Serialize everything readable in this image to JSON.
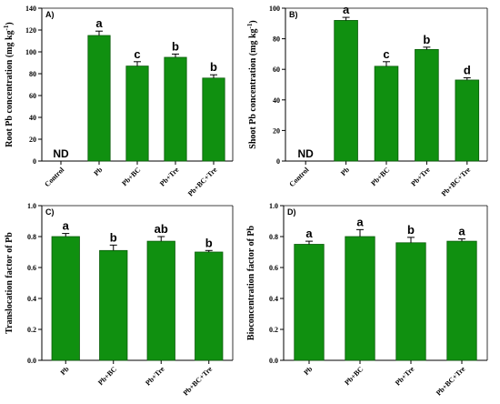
{
  "colors": {
    "bar": "#109010",
    "bar_edge": "#0a5c0a",
    "axis": "#000000"
  },
  "chart_data": [
    {
      "type": "bar",
      "panel_label": "A)",
      "ylabel": "Root Pb concentration (mg kg",
      "ylabel_sup": "-1",
      "ylabel_close": ")",
      "ylim": [
        0,
        140
      ],
      "yticks": [
        0,
        20,
        40,
        60,
        80,
        100,
        120,
        140
      ],
      "categories": [
        "Control",
        "Pb",
        "Pb+BC",
        "Pb+Tre",
        "Pb+BC+Tre"
      ],
      "values": [
        null,
        115,
        87,
        95,
        76
      ],
      "errors": [
        null,
        4,
        4,
        3,
        3
      ],
      "letters": [
        "",
        "a",
        "c",
        "b",
        "b"
      ],
      "missing_label": "ND"
    },
    {
      "type": "bar",
      "panel_label": "B)",
      "ylabel": "Shoot Pb concentration (mg kg",
      "ylabel_sup": "-1",
      "ylabel_close": ")",
      "ylim": [
        0,
        100
      ],
      "yticks": [
        0,
        20,
        40,
        60,
        80,
        100
      ],
      "categories": [
        "Control",
        "Pb",
        "Pb+BC",
        "Pb+Tre",
        "Pb+BC+Tre"
      ],
      "values": [
        null,
        92,
        62,
        73,
        53
      ],
      "errors": [
        null,
        2,
        3,
        1.5,
        1.5
      ],
      "letters": [
        "",
        "a",
        "c",
        "b",
        "d"
      ],
      "missing_label": "ND"
    },
    {
      "type": "bar",
      "panel_label": "C)",
      "ylabel": "Translocation factor of Pb",
      "ylim": [
        0,
        1.0
      ],
      "yticks": [
        "0.0",
        "0.2",
        "0.4",
        "0.6",
        "0.8",
        "1.0"
      ],
      "categories": [
        "Pb",
        "Pb+BC",
        "Pb+Tre",
        "Pb+BC+Tre"
      ],
      "values": [
        0.8,
        0.71,
        0.77,
        0.7
      ],
      "errors": [
        0.02,
        0.035,
        0.03,
        0.01
      ],
      "letters": [
        "a",
        "b",
        "ab",
        "b"
      ]
    },
    {
      "type": "bar",
      "panel_label": "D)",
      "ylabel": "Bioconcentration factor of Pb",
      "ylim": [
        0,
        1.0
      ],
      "yticks": [
        "0.0",
        "0.2",
        "0.4",
        "0.6",
        "0.8",
        "1.0"
      ],
      "categories": [
        "Pb",
        "Pb+BC",
        "Pb+Tre",
        "Pb+BC+Tre"
      ],
      "values": [
        0.75,
        0.8,
        0.76,
        0.77
      ],
      "errors": [
        0.02,
        0.045,
        0.035,
        0.015
      ],
      "letters": [
        "a",
        "a",
        "b",
        "a"
      ]
    }
  ]
}
